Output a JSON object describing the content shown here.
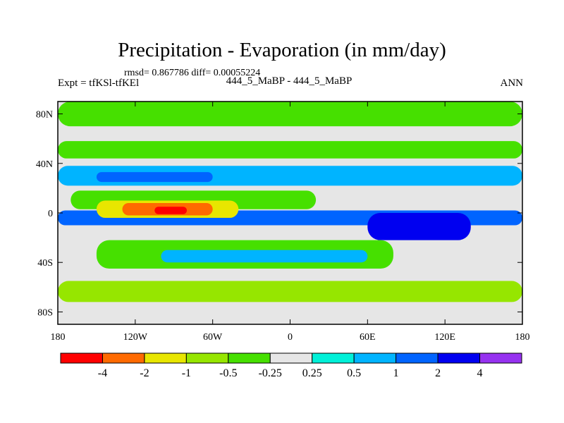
{
  "chart_data": {
    "type": "heatmap",
    "title": "Precipitation - Evaporation (in mm/day)",
    "stats_line": "rmsd= 0.867786 diff= 0.00055224",
    "left_label": "Expt = tfKSl-tfKEl",
    "center_label": "444_5_MaBP - 444_5_MaBP",
    "right_label": "ANN",
    "x_range": [
      -180,
      180
    ],
    "y_range": [
      -90,
      90
    ],
    "x_ticks": [
      {
        "value": -180,
        "label": "180"
      },
      {
        "value": -120,
        "label": "120W"
      },
      {
        "value": -60,
        "label": "60W"
      },
      {
        "value": 0,
        "label": "0"
      },
      {
        "value": 60,
        "label": "60E"
      },
      {
        "value": 120,
        "label": "120E"
      },
      {
        "value": 180,
        "label": "180"
      }
    ],
    "y_ticks": [
      {
        "value": 80,
        "label": "80N"
      },
      {
        "value": 40,
        "label": "40N"
      },
      {
        "value": 0,
        "label": "0"
      },
      {
        "value": -40,
        "label": "40S"
      },
      {
        "value": -80,
        "label": "80S"
      }
    ],
    "colorbar": {
      "colors": [
        "#ff0000",
        "#ff6a00",
        "#e8e600",
        "#96e600",
        "#46e000",
        "#e6e6e6",
        "#00f0d8",
        "#00b4ff",
        "#0064ff",
        "#0000f0",
        "#9632f0"
      ],
      "labels": [
        "-4",
        "-2",
        "-1",
        "-0.5",
        "-0.25",
        "0.25",
        "0.5",
        "1",
        "2",
        "4"
      ]
    },
    "regions": [
      {
        "name": "arctic-band",
        "bin": 4,
        "lon": [
          -180,
          180
        ],
        "lat": [
          70,
          90
        ]
      },
      {
        "name": "north-midlat-band",
        "bin": 4,
        "lon": [
          -180,
          180
        ],
        "lat": [
          44,
          58
        ]
      },
      {
        "name": "north-wet-band",
        "bin": 7,
        "lon": [
          -180,
          180
        ],
        "lat": [
          22,
          38
        ]
      },
      {
        "name": "north-wet-core",
        "bin": 8,
        "lon": [
          -150,
          -60
        ],
        "lat": [
          25,
          33
        ]
      },
      {
        "name": "subtropic-green-north",
        "bin": 4,
        "lon": [
          -170,
          20
        ],
        "lat": [
          3,
          18
        ]
      },
      {
        "name": "equatorial-wet-band",
        "bin": 8,
        "lon": [
          -180,
          180
        ],
        "lat": [
          -10,
          2
        ]
      },
      {
        "name": "equatorial-wet-core",
        "bin": 9,
        "lon": [
          60,
          140
        ],
        "lat": [
          -22,
          0
        ]
      },
      {
        "name": "subtropic-yellow",
        "bin": 2,
        "lon": [
          -150,
          -40
        ],
        "lat": [
          -4,
          10
        ]
      },
      {
        "name": "subtropic-dry-orange",
        "bin": 1,
        "lon": [
          -130,
          -60
        ],
        "lat": [
          -2,
          8
        ]
      },
      {
        "name": "subtropic-dry-core",
        "bin": 0,
        "lon": [
          -105,
          -80
        ],
        "lat": [
          -1,
          5
        ]
      },
      {
        "name": "south-green-band",
        "bin": 4,
        "lon": [
          -150,
          80
        ],
        "lat": [
          -45,
          -22
        ]
      },
      {
        "name": "south-mid-green",
        "bin": 3,
        "lon": [
          -180,
          180
        ],
        "lat": [
          -72,
          -55
        ]
      },
      {
        "name": "south-wet-band",
        "bin": 7,
        "lon": [
          -100,
          60
        ],
        "lat": [
          -40,
          -30
        ]
      },
      {
        "name": "antarctic-land",
        "bin": 5,
        "lon": [
          -140,
          60
        ],
        "lat": [
          -90,
          -78
        ]
      }
    ]
  }
}
